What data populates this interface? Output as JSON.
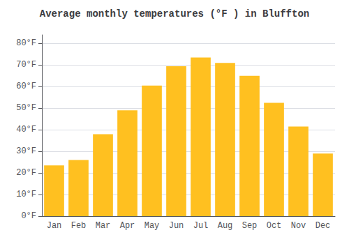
{
  "chart_data": {
    "type": "bar",
    "title": "Average monthly temperatures (°F ) in Bluffton",
    "categories": [
      "Jan",
      "Feb",
      "Mar",
      "Apr",
      "May",
      "Jun",
      "Jul",
      "Aug",
      "Sep",
      "Oct",
      "Nov",
      "Dec"
    ],
    "values": [
      23.5,
      26.0,
      38.0,
      49.0,
      60.5,
      69.5,
      73.5,
      71.0,
      65.0,
      52.5,
      41.5,
      29.0
    ],
    "color": "#FFC020",
    "ylim": [
      0,
      84
    ],
    "yticks": [
      {
        "value": 0,
        "label": "0°F"
      },
      {
        "value": 10,
        "label": "10°F"
      },
      {
        "value": 20,
        "label": "20°F"
      },
      {
        "value": 30,
        "label": "30°F"
      },
      {
        "value": 40,
        "label": "40°F"
      },
      {
        "value": 50,
        "label": "50°F"
      },
      {
        "value": 60,
        "label": "60°F"
      },
      {
        "value": 70,
        "label": "70°F"
      },
      {
        "value": 80,
        "label": "80°F"
      }
    ],
    "grid": true
  }
}
